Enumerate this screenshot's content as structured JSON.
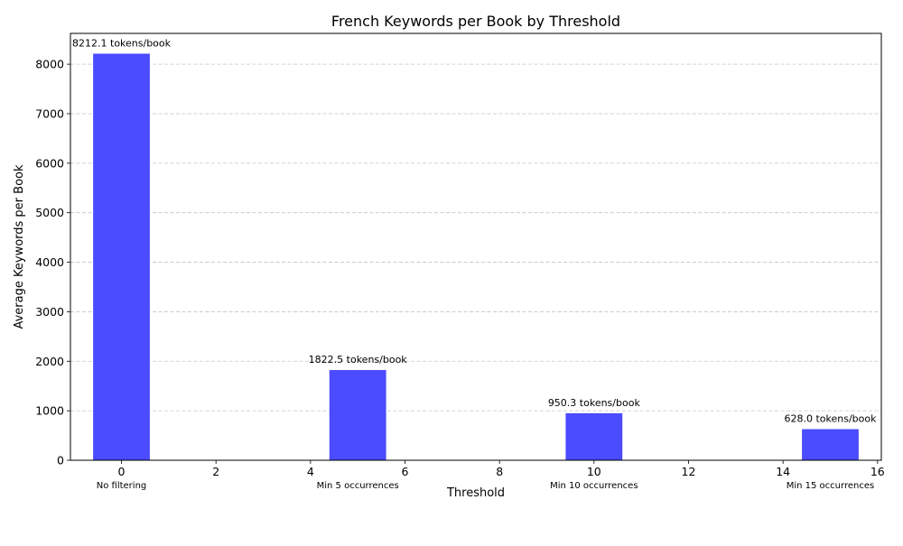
{
  "chart_data": {
    "type": "bar",
    "title": "French Keywords per Book by Threshold",
    "xlabel": "Threshold",
    "ylabel": "Average Keywords per Book",
    "x": [
      0,
      5,
      10,
      15
    ],
    "values": [
      8212.1,
      1822.5,
      950.3,
      628.0
    ],
    "data_labels": [
      "8212.1 tokens/book",
      "1822.5 tokens/book",
      "950.3 tokens/book",
      "628.0 tokens/book"
    ],
    "category_labels": [
      "No filtering",
      "Min 5 occurrences",
      "Min 10 occurrences",
      "Min 15 occurrences"
    ],
    "bar_width": 1.2,
    "xlim": [
      -1.08,
      16.08
    ],
    "ylim": [
      0,
      8622
    ],
    "xticks": [
      0,
      2,
      4,
      6,
      8,
      10,
      12,
      14,
      16
    ],
    "yticks": [
      0,
      1000,
      2000,
      3000,
      4000,
      5000,
      6000,
      7000,
      8000
    ],
    "grid": "y-dashed",
    "bar_color": "#4b4bff"
  }
}
